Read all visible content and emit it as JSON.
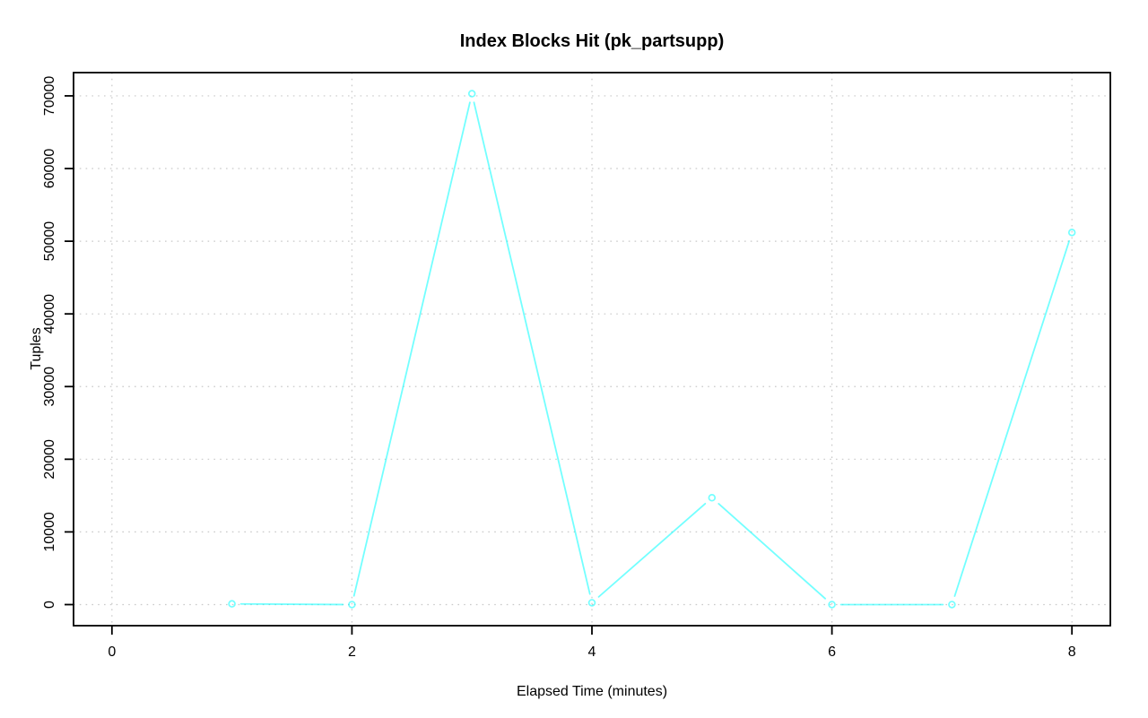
{
  "chart_data": {
    "type": "line",
    "title": "Index Blocks Hit (pk_partsupp)",
    "xlabel": "Elapsed Time (minutes)",
    "ylabel": "Tuples",
    "x": [
      1,
      2,
      3,
      4,
      5,
      6,
      7,
      8
    ],
    "values": [
      100,
      0,
      70300,
      250,
      14700,
      0,
      0,
      51200
    ],
    "x_ticks": [
      0,
      2,
      4,
      6,
      8
    ],
    "y_ticks": [
      0,
      10000,
      20000,
      30000,
      40000,
      50000,
      60000,
      70000
    ],
    "xlim": [
      -0.32,
      8.32
    ],
    "ylim": [
      -2900,
      73200
    ],
    "grid": "dotted",
    "legend": "none",
    "marker": "open-circle",
    "line_color": "#00ffff",
    "grid_color": "#c9c9c9",
    "axis_color": "#000000",
    "background_color": "#ffffff"
  }
}
